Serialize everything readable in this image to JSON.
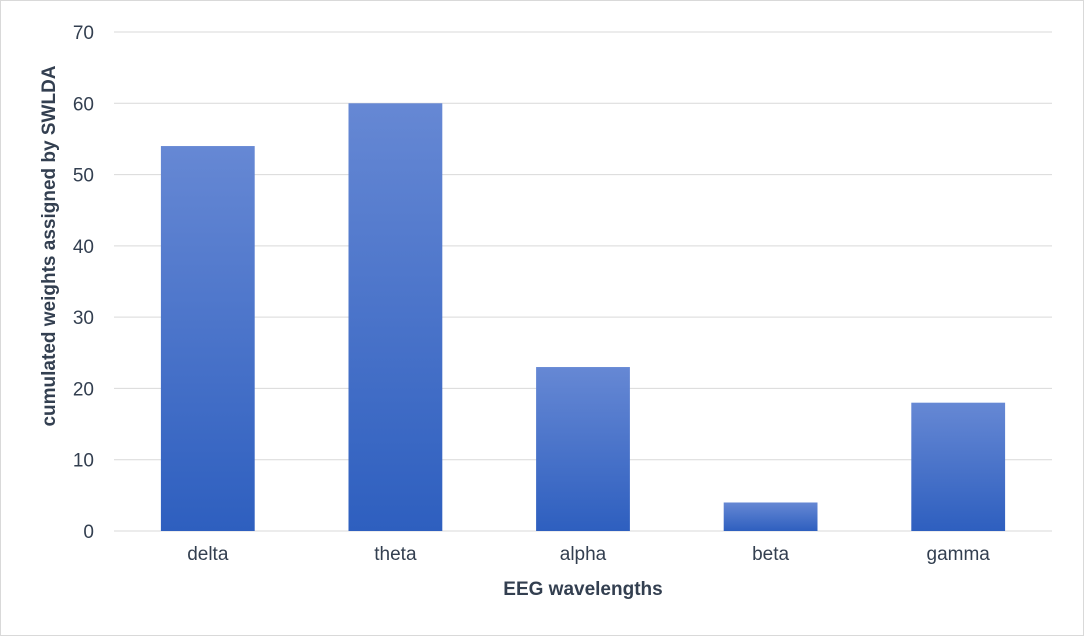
{
  "chart_data": {
    "type": "bar",
    "title": "",
    "xlabel": "EEG wavelengths",
    "ylabel": "cumulated weights assigned by SWLDA",
    "categories": [
      "delta",
      "theta",
      "alpha",
      "beta",
      "gamma"
    ],
    "values": [
      54,
      60,
      23,
      4,
      18
    ],
    "ylim": [
      0,
      70
    ],
    "yticks": [
      0,
      10,
      20,
      30,
      40,
      50,
      60,
      70
    ],
    "grid": true,
    "legend": "none",
    "colors": {
      "bar_top": "#6688d4",
      "bar_bottom": "#2e5fbf",
      "grid": "#d9d9d9",
      "text": "#333f50",
      "border": "#d9d9d9"
    }
  }
}
